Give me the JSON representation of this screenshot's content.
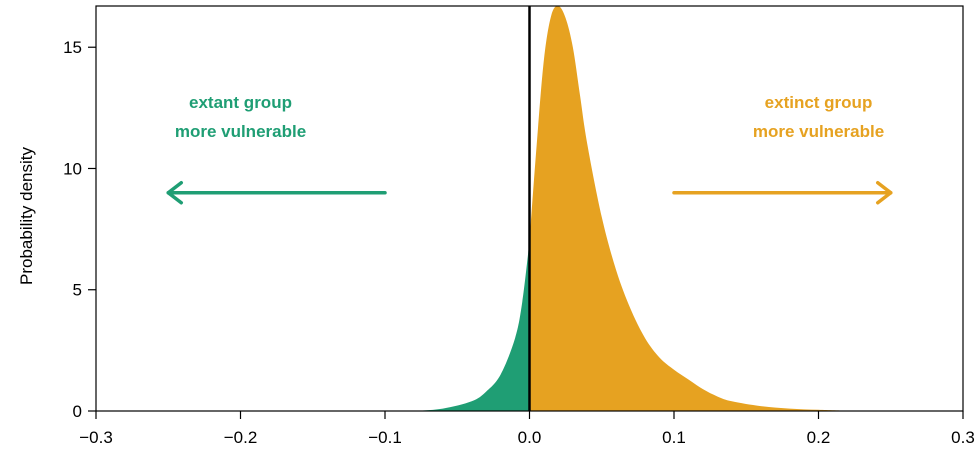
{
  "chart_data": {
    "type": "area",
    "title": "",
    "xlabel": "",
    "ylabel": "Probability density",
    "xlim": [
      -0.3,
      0.3
    ],
    "ylim": [
      0,
      16.7
    ],
    "x_ticks": [
      -0.3,
      -0.2,
      -0.1,
      0.0,
      0.1,
      0.2,
      0.3
    ],
    "x_tick_labels": [
      "−0.3",
      "−0.2",
      "−0.1",
      "0.0",
      "0.1",
      "0.2",
      "0.3"
    ],
    "y_ticks": [
      0,
      5,
      10,
      15
    ],
    "y_tick_labels": [
      "0",
      "5",
      "10",
      "15"
    ],
    "grid": false,
    "colors": {
      "extant": "#1f9e74",
      "extinct": "#e6a221",
      "zero_line": "#000000"
    },
    "density": {
      "x": [
        -0.08,
        -0.06,
        -0.04,
        -0.03,
        -0.02,
        -0.01,
        -0.005,
        0.0,
        0.005,
        0.01,
        0.015,
        0.02,
        0.025,
        0.03,
        0.035,
        0.04,
        0.05,
        0.06,
        0.07,
        0.08,
        0.09,
        0.1,
        0.11,
        0.12,
        0.13,
        0.14,
        0.16,
        0.18,
        0.2,
        0.22,
        0.225
      ],
      "y": [
        0.0,
        0.1,
        0.4,
        0.8,
        1.5,
        3.0,
        4.5,
        7.0,
        11.0,
        14.5,
        16.3,
        16.7,
        16.2,
        15.0,
        13.0,
        11.0,
        8.0,
        5.8,
        4.2,
        3.0,
        2.2,
        1.7,
        1.3,
        0.9,
        0.6,
        0.4,
        0.2,
        0.1,
        0.05,
        0.01,
        0.0
      ]
    },
    "annotations": [
      {
        "lines": [
          "extant group",
          "more vulnerable"
        ],
        "color": "extant",
        "x_center": -0.2,
        "y_lines": [
          12.5,
          11.3
        ]
      },
      {
        "lines": [
          "extinct group",
          "more vulnerable"
        ],
        "color": "extinct",
        "x_center": 0.2,
        "y_lines": [
          12.5,
          11.3
        ]
      }
    ],
    "arrows": [
      {
        "direction": "left",
        "color": "extant",
        "x_from": -0.1,
        "x_to": -0.25,
        "y": 9.0
      },
      {
        "direction": "right",
        "color": "extinct",
        "x_from": 0.1,
        "x_to": 0.25,
        "y": 9.0
      }
    ],
    "zero_line_x": 0.0
  }
}
